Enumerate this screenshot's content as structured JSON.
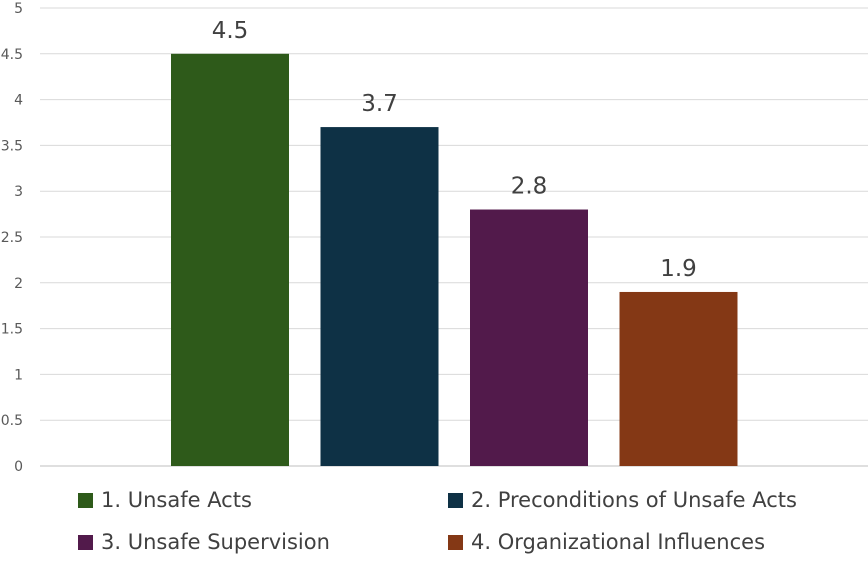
{
  "chart_data": {
    "type": "bar",
    "title": "",
    "xlabel": "",
    "ylabel": "",
    "ylim": [
      0,
      5
    ],
    "yticks": [
      "0",
      "0.5",
      "1",
      "1.5",
      "2",
      "2.5",
      "3",
      "3.5",
      "4",
      "4.5",
      "5"
    ],
    "grid": true,
    "legend_position": "bottom",
    "series": [
      {
        "name": "1. Unsafe Acts",
        "value": 4.5,
        "label": "4.5",
        "color": "#2e5a1a"
      },
      {
        "name": "2. Preconditions of Unsafe Acts",
        "value": 3.7,
        "label": "3.7",
        "color": "#0e3145"
      },
      {
        "name": "3. Unsafe Supervision",
        "value": 2.8,
        "label": "2.8",
        "color": "#521a4b"
      },
      {
        "name": "4. Organizational Influences",
        "value": 1.9,
        "label": "1.9",
        "color": "#843815"
      }
    ]
  }
}
